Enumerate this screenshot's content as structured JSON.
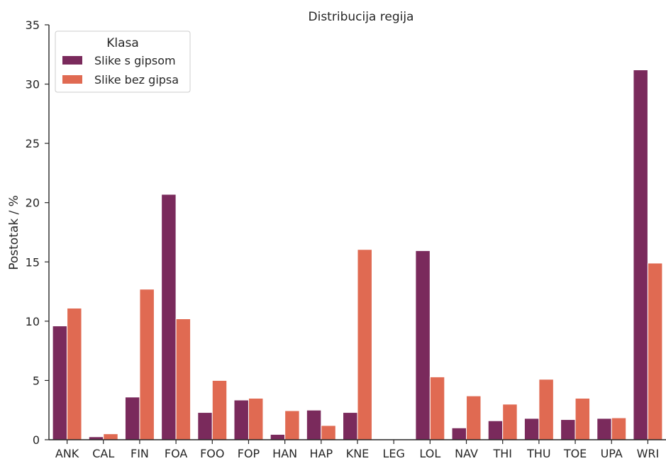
{
  "chart_data": {
    "type": "bar",
    "title": "Distribucija regija",
    "xlabel": "",
    "ylabel": "Postotak / %",
    "ylim": [
      0,
      35
    ],
    "yticks": [
      "0",
      "5",
      "10",
      "15",
      "20",
      "25",
      "30",
      "35"
    ],
    "grid": false,
    "legend": {
      "title": "Klasa",
      "placement": "top-left"
    },
    "categories": [
      "ANK",
      "CAL",
      "FIN",
      "FOA",
      "FOO",
      "FOP",
      "HAN",
      "HAP",
      "KNE",
      "LEG",
      "LOL",
      "NAV",
      "THI",
      "THU",
      "TOE",
      "UPA",
      "WRI"
    ],
    "series": [
      {
        "name": "Slike s gipsom",
        "color": "#7a2a5c",
        "values": [
          9.6,
          0.25,
          3.6,
          20.7,
          2.3,
          3.35,
          0.45,
          2.5,
          2.3,
          0.0,
          15.95,
          1.0,
          1.6,
          1.8,
          1.7,
          1.8,
          31.2
        ]
      },
      {
        "name": "Slike bez gipsa",
        "color": "#e06a52",
        "values": [
          11.1,
          0.5,
          12.7,
          10.2,
          5.0,
          3.5,
          2.45,
          1.2,
          16.05,
          0.0,
          5.3,
          3.7,
          3.0,
          5.1,
          3.5,
          1.85,
          14.9
        ]
      }
    ]
  }
}
